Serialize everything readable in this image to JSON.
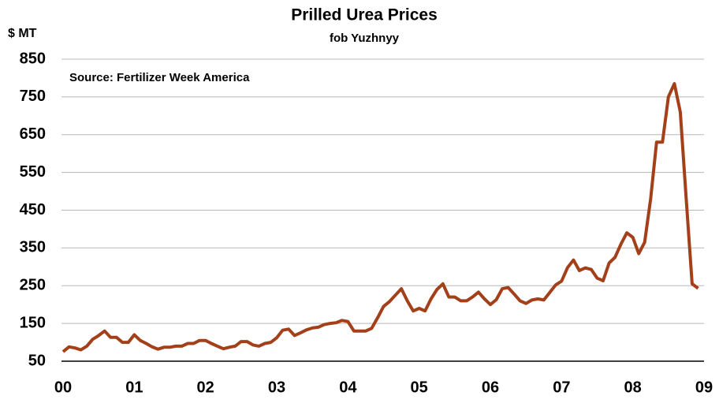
{
  "chart_data": {
    "type": "line",
    "title": "Prilled Urea Prices",
    "subtitle": "fob Yuzhnyy",
    "y_label": "$ MT",
    "annotation": "Source: Fertilizer Week America",
    "x": [
      0,
      1,
      2,
      3,
      4,
      5,
      6,
      7,
      8,
      9,
      10,
      11,
      12,
      13,
      14,
      15,
      16,
      17,
      18,
      19,
      20,
      21,
      22,
      23,
      24,
      25,
      26,
      27,
      28,
      29,
      30,
      31,
      32,
      33,
      34,
      35,
      36,
      37,
      38,
      39,
      40,
      41,
      42,
      43,
      44,
      45,
      46,
      47,
      48,
      49,
      50,
      51,
      52,
      53,
      54,
      55,
      56,
      57,
      58,
      59,
      60,
      61,
      62,
      63,
      64,
      65,
      66,
      67,
      68,
      69,
      70,
      71,
      72,
      73,
      74,
      75,
      76,
      77,
      78,
      79,
      80,
      81,
      82,
      83,
      84,
      85,
      86,
      87,
      88,
      89,
      90,
      91,
      92,
      93,
      94,
      95,
      96,
      97,
      98,
      99,
      100,
      101,
      102,
      103,
      104,
      105,
      106,
      107
    ],
    "series": [
      {
        "name": "Prilled Urea",
        "color": "#a3401a",
        "values": [
          75,
          88,
          85,
          80,
          90,
          108,
          118,
          130,
          113,
          113,
          100,
          100,
          120,
          105,
          97,
          88,
          82,
          87,
          87,
          90,
          90,
          97,
          97,
          105,
          105,
          97,
          90,
          83,
          87,
          90,
          102,
          102,
          93,
          90,
          97,
          100,
          112,
          132,
          135,
          118,
          125,
          133,
          138,
          140,
          147,
          150,
          152,
          158,
          155,
          130,
          130,
          130,
          137,
          165,
          195,
          208,
          225,
          242,
          210,
          183,
          190,
          183,
          215,
          240,
          255,
          220,
          220,
          210,
          210,
          220,
          233,
          215,
          200,
          213,
          242,
          245,
          228,
          210,
          203,
          212,
          215,
          212,
          232,
          252,
          262,
          298,
          318,
          290,
          297,
          293,
          270,
          263,
          310,
          325,
          360,
          390,
          378,
          335,
          365,
          480,
          630,
          630,
          750,
          785,
          710,
          480,
          255,
          243
        ]
      }
    ],
    "xlim": [
      0,
      108
    ],
    "xticks": [
      {
        "value": 0,
        "label": "00"
      },
      {
        "value": 12,
        "label": "01"
      },
      {
        "value": 24,
        "label": "02"
      },
      {
        "value": 36,
        "label": "03"
      },
      {
        "value": 48,
        "label": "04"
      },
      {
        "value": 60,
        "label": "05"
      },
      {
        "value": 72,
        "label": "06"
      },
      {
        "value": 84,
        "label": "07"
      },
      {
        "value": 96,
        "label": "08"
      },
      {
        "value": 108,
        "label": "09"
      }
    ],
    "ylim": [
      50,
      850
    ],
    "yticks": [
      50,
      150,
      250,
      350,
      450,
      550,
      650,
      750,
      850
    ],
    "grid": true
  }
}
